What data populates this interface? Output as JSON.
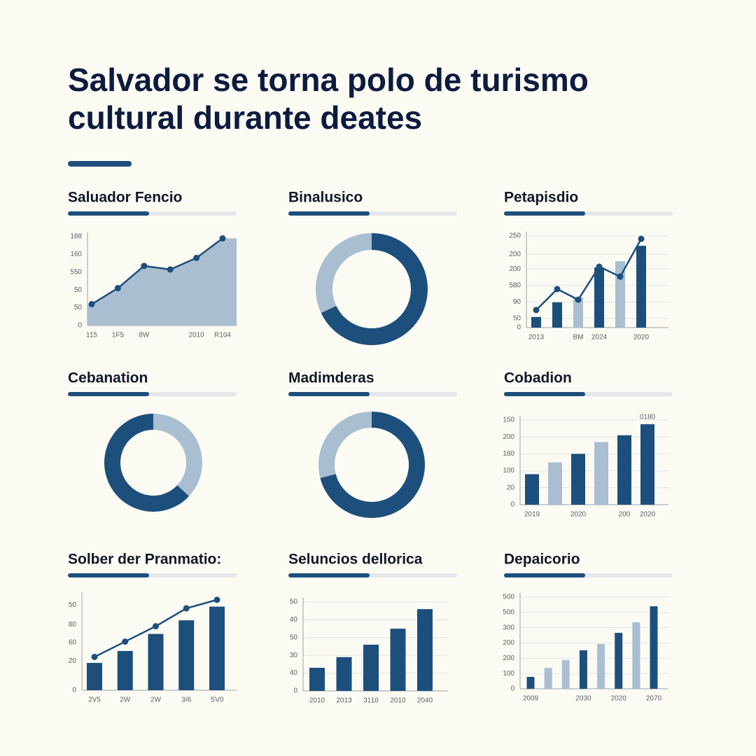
{
  "title": [
    "Salvador se torna polo de turismo",
    "cultural durante deates"
  ],
  "chart_data": [
    {
      "type": "area",
      "title": "Saluador Fencio",
      "categories": [
        "115",
        "1F5",
        "8W",
        null,
        "2010",
        "R104"
      ],
      "values": [
        24,
        42,
        67,
        63,
        76,
        98
      ],
      "color": "#1d4f7c",
      "fill": "#a9bfd1",
      "ylim": [
        0,
        100
      ],
      "yticks": [
        0,
        {
          "value": 20,
          "label": "50"
        },
        {
          "value": 40,
          "label": "50"
        },
        {
          "value": 60,
          "label": "550"
        },
        {
          "value": 80,
          "label": "160"
        },
        {
          "value": 100,
          "label": "188"
        }
      ],
      "grid": false
    },
    {
      "type": "donut",
      "title": "Binalusico",
      "values": [
        68,
        32
      ],
      "colors": [
        "#1d4f7c",
        "#a9bfd1"
      ]
    },
    {
      "type": "combo",
      "title": "Petapisdio",
      "categories": [
        "2013",
        null,
        "BM",
        "2024",
        null,
        "2020"
      ],
      "series": [
        {
          "type": "bar",
          "values": [
            29,
            69,
            82,
            164,
            181,
            223
          ],
          "colors": [
            "#1d4f7c",
            "#1d4f7c",
            "#a9bfd1",
            "#1d4f7c",
            "#a9bfd1",
            "#1d4f7c"
          ]
        },
        {
          "type": "line",
          "values": [
            48,
            105,
            76,
            166,
            139,
            242
          ],
          "color": "#1d4f7c"
        }
      ],
      "ylim": [
        0,
        250
      ],
      "yticks": [
        0,
        {
          "value": 25,
          "label": "50"
        },
        {
          "value": 70,
          "label": "90"
        },
        {
          "value": 115,
          "label": "580"
        },
        {
          "value": 160,
          "label": "200"
        },
        {
          "value": 200,
          "label": "200"
        },
        250
      ],
      "grid": true
    },
    {
      "type": "donut",
      "title": "Cebanation",
      "values": [
        37,
        63
      ],
      "colors": [
        "#a9bfd1",
        "#1d4f7c"
      ]
    },
    {
      "type": "donut",
      "title": "Madimderas",
      "values": [
        71,
        29
      ],
      "colors": [
        "#1d4f7c",
        "#a9bfd1"
      ]
    },
    {
      "type": "bar",
      "title": "Cobadion",
      "categories": [
        "2019",
        null,
        "2020",
        null,
        "200",
        "2020"
      ],
      "values": [
        36,
        50,
        60,
        74,
        82,
        95
      ],
      "colors": [
        "#1d4f7c",
        "#a9bfd1",
        "#1d4f7c",
        "#a9bfd1",
        "#1d4f7c",
        "#1d4f7c"
      ],
      "annotation": "0180",
      "ylim": [
        0,
        100
      ],
      "yticks": [
        0,
        20,
        {
          "value": 40,
          "label": "100"
        },
        {
          "value": 60,
          "label": "180"
        },
        {
          "value": 80,
          "label": "200"
        },
        {
          "value": 100,
          "label": "150"
        }
      ],
      "grid": true
    },
    {
      "type": "combo",
      "title": "Solber der Pranmatio:",
      "categories": [
        "2V5",
        "2W",
        "2W",
        "3/6",
        "SV0"
      ],
      "series": [
        {
          "type": "bar",
          "values": [
            32,
            46,
            66,
            82,
            98
          ],
          "color": "#1d4f7c"
        },
        {
          "type": "line",
          "values": [
            39,
            57,
            75,
            96,
            106
          ],
          "color": "#1d4f7c"
        }
      ],
      "ylim": [
        0,
        110
      ],
      "yticks": [
        0,
        {
          "value": 34,
          "label": "20"
        },
        {
          "value": 56,
          "label": "60"
        },
        {
          "value": 77,
          "label": "80"
        },
        {
          "value": 100,
          "label": "50"
        }
      ],
      "grid": false
    },
    {
      "type": "bar",
      "title": "Seluncios dellorica",
      "categories": [
        "2010",
        "2013",
        "3110",
        "2010",
        "2040"
      ],
      "values": [
        13,
        19,
        26,
        35,
        46
      ],
      "color": "#1d4f7c",
      "ylim": [
        0,
        50
      ],
      "yticks": [
        0,
        {
          "value": 10,
          "label": "40"
        },
        {
          "value": 20,
          "label": "30"
        },
        {
          "value": 30,
          "label": "50"
        },
        40,
        50
      ],
      "grid": true
    },
    {
      "type": "bar",
      "title": "Depaicorio",
      "categories": [
        "2009",
        null,
        null,
        "2030",
        null,
        "2020",
        null,
        "2070"
      ],
      "values": [
        78,
        137,
        188,
        252,
        293,
        366,
        435,
        540
      ],
      "colors": [
        "#1d4f7c",
        "#a9bfd1",
        "#a9bfd1",
        "#1d4f7c",
        "#a9bfd1",
        "#1d4f7c",
        "#a9bfd1",
        "#1d4f7c"
      ],
      "ylim": [
        0,
        600
      ],
      "yticks": [
        0,
        100,
        200,
        {
          "value": 300,
          "label": "200"
        },
        {
          "value": 400,
          "label": "300"
        },
        500,
        {
          "value": 600,
          "label": "500"
        }
      ],
      "grid": true
    }
  ]
}
